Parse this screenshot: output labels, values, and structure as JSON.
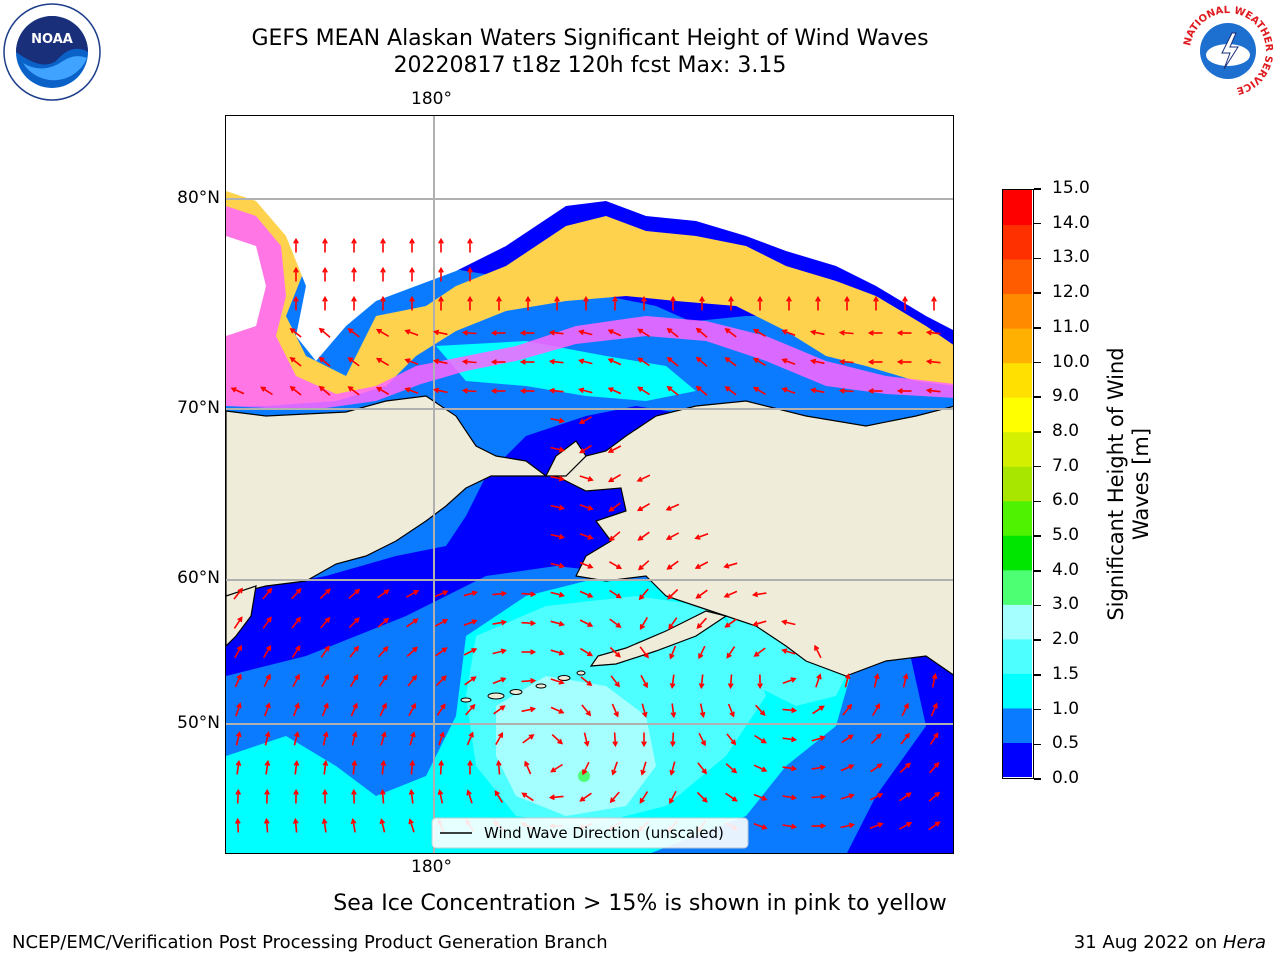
{
  "title": {
    "line1": "GEFS MEAN Alaskan Waters Significant Height of Wind Waves",
    "line2": "20220817 t18z 120h fcst   Max: 3.15"
  },
  "logos": {
    "left": "NOAA",
    "right_ring": "NATIONAL WEATHER SERVICE"
  },
  "axes": {
    "lon_top": "180°",
    "lon_bottom": "180°",
    "lat_labels": [
      "80°N",
      "70°N",
      "60°N",
      "50°N"
    ]
  },
  "legend": {
    "label": "Wind Wave Direction (unscaled)",
    "line_color": "#000000"
  },
  "colorbar": {
    "label": "Significant Height of Wind Waves [m]",
    "ticks": [
      "0.0",
      "0.5",
      "1.0",
      "1.5",
      "2.0",
      "3.0",
      "4.0",
      "5.0",
      "6.0",
      "7.0",
      "8.0",
      "9.0",
      "10.0",
      "11.0",
      "12.0",
      "13.0",
      "14.0",
      "15.0"
    ],
    "colors": [
      "#0000ff",
      "#0a7bff",
      "#00ffff",
      "#4dffff",
      "#a6ffff",
      "#4cff73",
      "#00e600",
      "#4ff200",
      "#a8e600",
      "#d4f000",
      "#ffff00",
      "#ffe000",
      "#ffb000",
      "#ff8a00",
      "#ff5c00",
      "#ff3000",
      "#ff0000"
    ]
  },
  "map_colors": {
    "land": "#efedda",
    "ice_pink": "#ff66ff",
    "ice_yellow": "#ffd24d",
    "arrow": "#ff0000",
    "grid": "#b0b0b0"
  },
  "caption": "Sea Ice Concentration > 15% is shown in pink to yellow",
  "footer": {
    "left": "NCEP/EMC/Verification Post Processing Product Generation Branch",
    "right_date": "31 Aug 2022 on ",
    "right_machine": "Hera"
  }
}
